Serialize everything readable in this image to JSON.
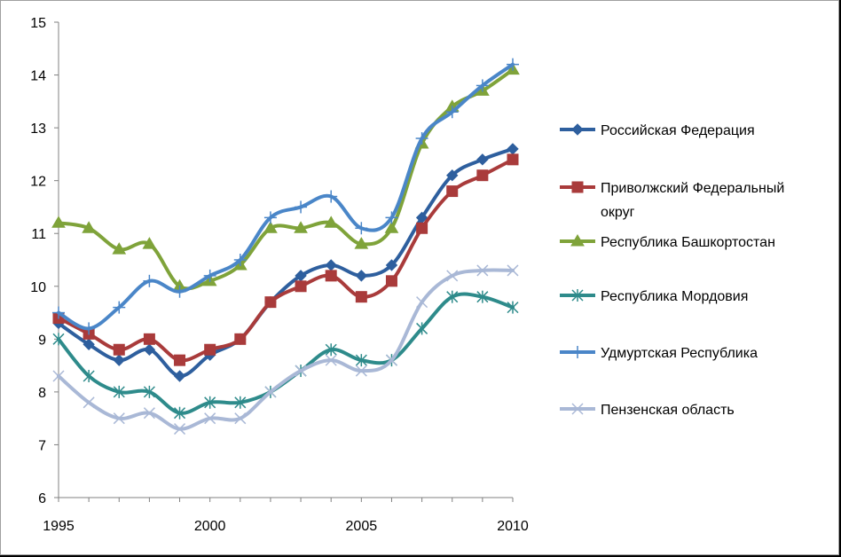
{
  "chart_data": {
    "type": "line",
    "title": "",
    "xlabel": "",
    "ylabel": "",
    "x": [
      1995,
      1996,
      1997,
      1998,
      1999,
      2000,
      2001,
      2002,
      2003,
      2004,
      2005,
      2006,
      2007,
      2008,
      2009,
      2010
    ],
    "x_ticks": [
      1995,
      2000,
      2005,
      2010
    ],
    "ylim": [
      6,
      15
    ],
    "y_ticks": [
      6,
      7,
      8,
      9,
      10,
      11,
      12,
      13,
      14,
      15
    ],
    "grid": false,
    "smooth": true,
    "legend_position": "right",
    "series": [
      {
        "name": "Российская Федерация",
        "legend_lines": [
          "Российская Федерация"
        ],
        "color": "#2E5F9E",
        "marker": "diamond",
        "values": [
          9.3,
          8.9,
          8.6,
          8.8,
          8.3,
          8.7,
          9.0,
          9.7,
          10.2,
          10.4,
          10.2,
          10.4,
          11.3,
          12.1,
          12.4,
          12.6
        ]
      },
      {
        "name": "Приволжский Федеральный округ",
        "legend_lines": [
          "Приволжский Федеральный",
          "округ"
        ],
        "color": "#A93B3B",
        "marker": "square",
        "values": [
          9.4,
          9.1,
          8.8,
          9.0,
          8.6,
          8.8,
          9.0,
          9.7,
          10.0,
          10.2,
          9.8,
          10.1,
          11.1,
          11.8,
          12.1,
          12.4
        ]
      },
      {
        "name": "Республика Башкортостан",
        "legend_lines": [
          "Республика Башкортостан"
        ],
        "color": "#7FA33A",
        "marker": "triangle",
        "values": [
          11.2,
          11.1,
          10.7,
          10.8,
          10.0,
          10.1,
          10.4,
          11.1,
          11.1,
          11.2,
          10.8,
          11.1,
          12.7,
          13.4,
          13.7,
          14.1
        ]
      },
      {
        "name": "Республика Мордовия",
        "legend_lines": [
          "Республика Мордовия"
        ],
        "color": "#2E8B8B",
        "marker": "asterisk",
        "values": [
          9.0,
          8.3,
          8.0,
          8.0,
          7.6,
          7.8,
          7.8,
          8.0,
          8.4,
          8.8,
          8.6,
          8.6,
          9.2,
          9.8,
          9.8,
          9.6
        ]
      },
      {
        "name": "Удмуртская Республика",
        "legend_lines": [
          "Удмуртская Республика"
        ],
        "color": "#4A86C8",
        "marker": "plus",
        "values": [
          9.5,
          9.2,
          9.6,
          10.1,
          9.9,
          10.2,
          10.5,
          11.3,
          11.5,
          11.7,
          11.1,
          11.3,
          12.8,
          13.3,
          13.8,
          14.2
        ]
      },
      {
        "name": "Пензенская область",
        "legend_lines": [
          "Пензенская область"
        ],
        "color": "#A9B8D6",
        "marker": "x",
        "values": [
          8.3,
          7.8,
          7.5,
          7.6,
          7.3,
          7.5,
          7.5,
          8.0,
          8.4,
          8.6,
          8.4,
          8.6,
          9.7,
          10.2,
          10.3,
          10.3
        ]
      }
    ]
  }
}
